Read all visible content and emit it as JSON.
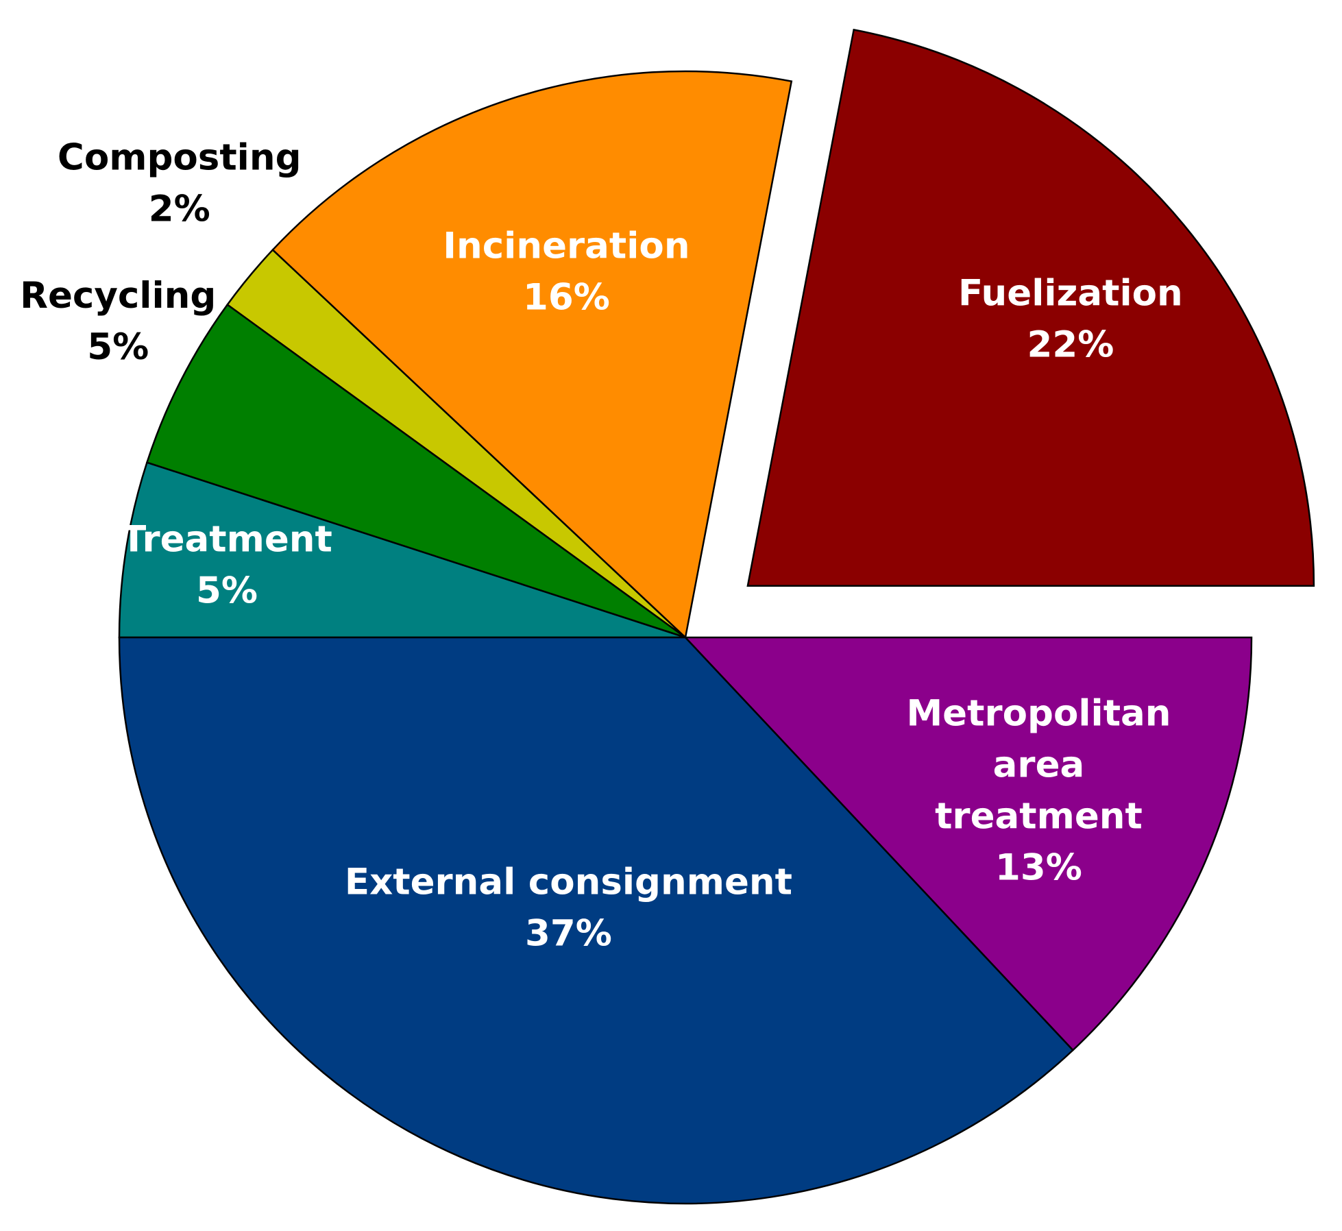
{
  "chart_data": {
    "type": "pie",
    "title": "",
    "start_angle_deg": 0,
    "direction": "counterclockwise",
    "slices": [
      {
        "label": "Fuelization",
        "label_lines": [
          "Fuelization"
        ],
        "value": 22,
        "value_label": "22%",
        "color": "#8B0000",
        "text_color": "#ffffff",
        "exploded": true
      },
      {
        "label": "Incineration",
        "label_lines": [
          "Incineration"
        ],
        "value": 16,
        "value_label": "16%",
        "color": "#FF8C00",
        "text_color": "#ffffff",
        "exploded": false
      },
      {
        "label": "Composting",
        "label_lines": [
          "Composting"
        ],
        "value": 2,
        "value_label": "2%",
        "color": "#C8C800",
        "text_color": "#000000",
        "exploded": false
      },
      {
        "label": "Recycling",
        "label_lines": [
          "Recycling"
        ],
        "value": 5,
        "value_label": "5%",
        "color": "#007F00",
        "text_color": "#000000",
        "exploded": false
      },
      {
        "label": "Treatment",
        "label_lines": [
          "Treatment"
        ],
        "value": 5,
        "value_label": "5%",
        "color": "#008080",
        "text_color": "#ffffff",
        "exploded": false
      },
      {
        "label": "External consignment",
        "label_lines": [
          "External consignment"
        ],
        "value": 37,
        "value_label": "37%",
        "color": "#003C82",
        "text_color": "#ffffff",
        "exploded": false
      },
      {
        "label": "Metropolitan area treatment",
        "label_lines": [
          "Metropolitan",
          "area",
          "treatment"
        ],
        "value": 13,
        "value_label": "13%",
        "color": "#8B008B",
        "text_color": "#ffffff",
        "exploded": false
      }
    ]
  }
}
